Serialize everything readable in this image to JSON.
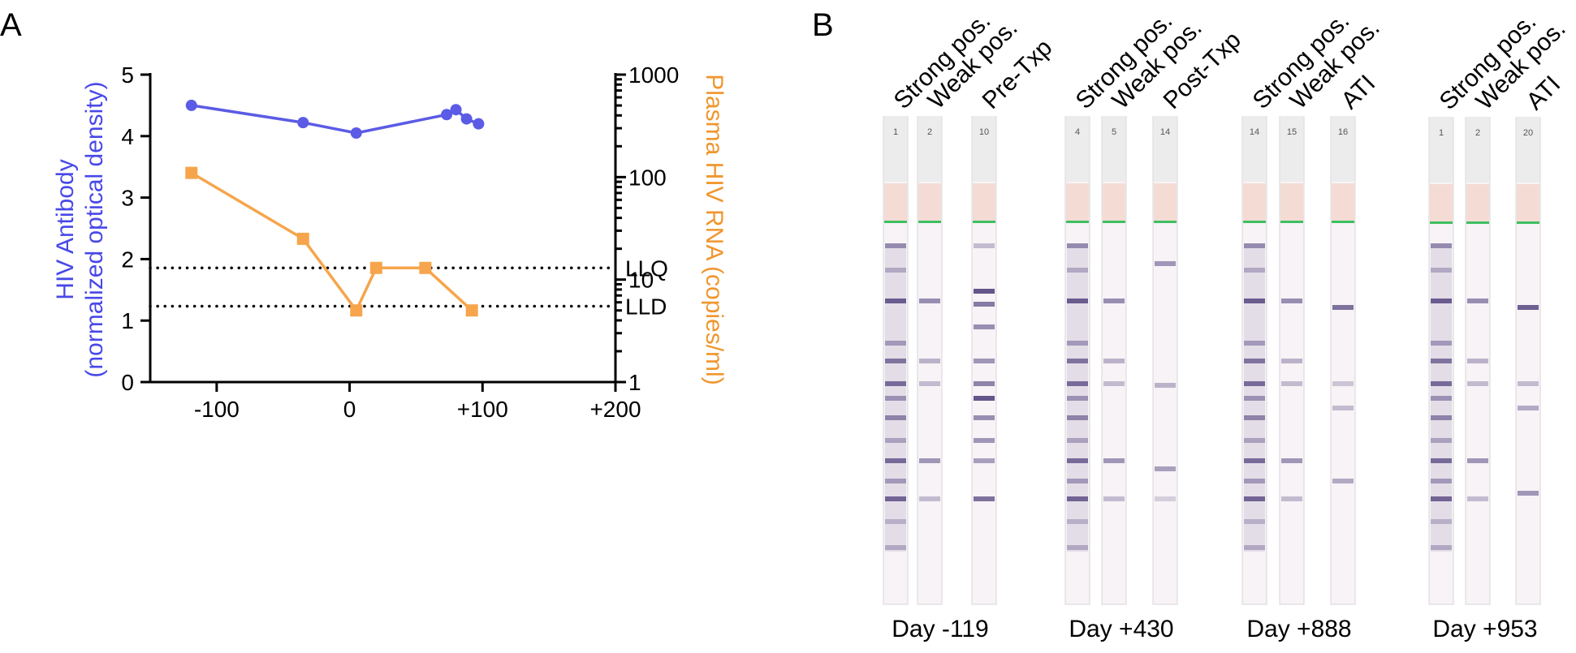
{
  "panels": {
    "a": "A",
    "b": "B"
  },
  "chart_data": [
    {
      "type": "line",
      "panel": "A",
      "ylabel": [
        "HIV Antibody",
        "(normalized optical density)"
      ],
      "ylabel_right": "Plasma HIV RNA (copies/ml)",
      "xlim": [
        -150,
        200
      ],
      "ylim": [
        0,
        5
      ],
      "ylim_right": [
        1,
        1000
      ],
      "right_scale": "log",
      "x_ticks": [
        -100,
        0,
        100,
        200
      ],
      "x_tick_labels": [
        "-100",
        "0",
        "+100",
        "+200"
      ],
      "y_ticks": [
        "0",
        "1",
        "2",
        "3",
        "4",
        "5"
      ],
      "y_right_ticks": [
        "1",
        "10",
        "100",
        "1000"
      ],
      "y_right_tick_values": [
        1,
        10,
        100,
        1000
      ],
      "grid": false,
      "series": [
        {
          "axis": "left",
          "color": "#5b5be6",
          "marker": "circle",
          "x": [
            -119,
            -35,
            5,
            73,
            80,
            88,
            97
          ],
          "y": [
            4.5,
            4.22,
            4.05,
            4.35,
            4.43,
            4.28,
            4.2
          ]
        },
        {
          "axis": "right",
          "color": "#f6a54c",
          "marker": "square",
          "x": [
            -119,
            -35,
            5,
            20,
            57,
            92
          ],
          "y": [
            110,
            25,
            5,
            13,
            13,
            5
          ]
        }
      ],
      "reference_lines": [
        {
          "label": "LLQ",
          "value": 13,
          "axis": "right",
          "style": "dotted"
        },
        {
          "label": "LLD",
          "value": 5.5,
          "axis": "right",
          "style": "dotted"
        }
      ]
    },
    {
      "type": "strip-images",
      "panel": "B",
      "groups": [
        {
          "caption": "Day -119",
          "strips": [
            {
              "label": "Strong pos.",
              "number": "1"
            },
            {
              "label": "Weak pos.",
              "number": "2"
            },
            {
              "label": "Pre-Txp",
              "number": "10"
            }
          ]
        },
        {
          "caption": "Day +430",
          "strips": [
            {
              "label": "Strong pos.",
              "number": "4"
            },
            {
              "label": "Weak pos.",
              "number": "5"
            },
            {
              "label": "Post-Txp",
              "number": "14"
            }
          ]
        },
        {
          "caption": "Day +888",
          "strips": [
            {
              "label": "Strong pos.",
              "number": "14"
            },
            {
              "label": "Weak pos.",
              "number": "15"
            },
            {
              "label": "ATI",
              "number": "16"
            }
          ]
        },
        {
          "caption": "Day +953",
          "strips": [
            {
              "label": "Strong pos.",
              "number": "1"
            },
            {
              "label": "Weak pos.",
              "number": "2"
            },
            {
              "label": "ATI",
              "number": "20"
            }
          ]
        }
      ]
    }
  ]
}
